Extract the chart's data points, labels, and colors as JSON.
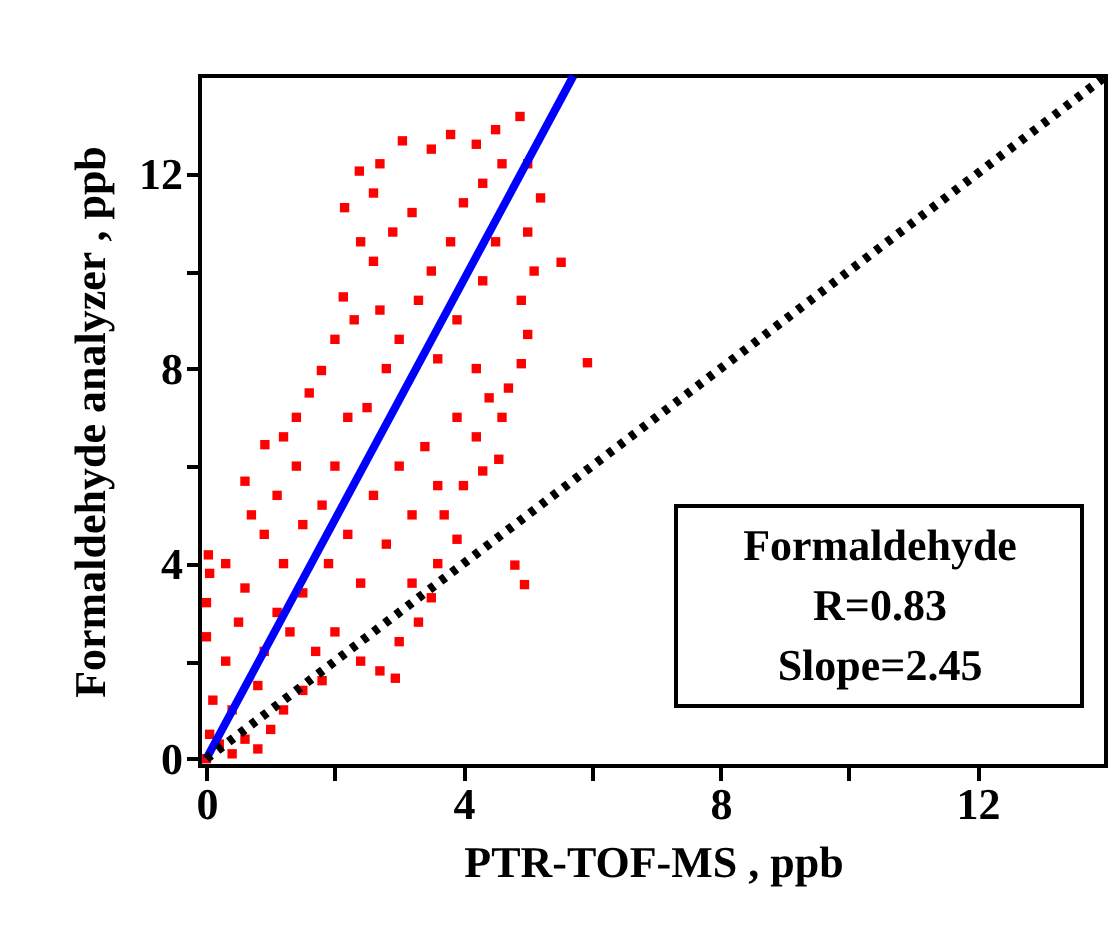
{
  "chart_data": {
    "type": "scatter",
    "xlabel": "PTR-TOF-MS , ppb",
    "ylabel": "Formaldehyde analyzer , ppb",
    "xlim": [
      -0.1,
      14
    ],
    "ylim": [
      -0.15,
      14
    ],
    "xticks": [
      0,
      {
        "value": 2,
        "label": null
      },
      4,
      {
        "value": 6,
        "label": null
      },
      8,
      {
        "value": 10,
        "label": null
      },
      12
    ],
    "yticks": [
      0,
      {
        "value": 2,
        "label": null
      },
      4,
      {
        "value": 6,
        "label": null
      },
      8,
      {
        "value": 10,
        "label": null
      },
      12
    ],
    "grid": false,
    "annotations": [
      "Formaldehyde",
      "R=0.83",
      "Slope=2.45"
    ],
    "series": [
      {
        "color": "#ff0000",
        "marker": "square",
        "x": [
          0,
          0.05,
          0.1,
          0.2,
          0.4,
          0.6,
          0.8,
          1.0,
          1.2,
          1.5,
          1.8,
          0.3,
          0.0,
          0.0,
          0.05,
          0.03,
          0.3,
          0.6,
          0.5,
          0.9,
          1.3,
          1.7,
          2.0,
          2.4,
          2.7,
          2.94,
          3.0,
          3.3,
          3.5,
          3.2,
          3.6,
          4.8,
          4.95,
          3.9,
          3.7,
          4.0,
          4.3,
          4.55,
          4.2,
          4.6,
          4.7,
          5.93,
          4.9,
          5.0,
          4.9,
          5.52,
          5.1,
          5.0,
          5.2,
          5.0,
          4.88,
          4.5,
          4.2,
          3.8,
          3.5,
          3.05,
          2.7,
          2.38,
          2.6,
          2.15,
          2.4,
          2.6,
          2.13,
          2.3,
          2.0,
          1.79,
          1.6,
          1.4,
          1.2,
          0.91,
          0.6,
          0.7,
          0.9,
          1.1,
          1.4,
          1.5,
          1.8,
          2.0,
          2.2,
          2.5,
          2.8,
          3.0,
          3.3,
          3.5,
          3.8,
          4.0,
          4.3,
          4.6,
          3.2,
          2.9,
          2.7,
          3.6,
          3.9,
          4.3,
          4.5,
          4.2,
          4.4,
          3.9,
          3.4,
          3.0,
          2.6,
          2.2,
          1.9,
          1.5,
          1.1,
          0.8,
          2.4,
          2.8,
          3.2,
          3.6,
          1.2,
          0.4
        ],
        "values": [
          0,
          0.5,
          1.2,
          0.3,
          0.1,
          0.4,
          0.2,
          0.6,
          1.0,
          1.4,
          1.6,
          2.0,
          2.5,
          3.2,
          3.8,
          4.18,
          4.0,
          3.5,
          2.8,
          2.2,
          2.6,
          2.2,
          2.6,
          2.0,
          1.8,
          1.65,
          2.4,
          2.8,
          3.3,
          3.6,
          4.0,
          3.97,
          3.57,
          4.5,
          5.0,
          5.6,
          5.9,
          6.14,
          6.6,
          7.0,
          7.6,
          8.12,
          8.1,
          8.7,
          9.4,
          10.18,
          10.0,
          10.8,
          11.5,
          12.2,
          13.17,
          12.9,
          12.6,
          12.8,
          12.5,
          12.67,
          12.2,
          12.05,
          11.6,
          11.3,
          10.6,
          10.2,
          9.47,
          9.0,
          8.6,
          7.96,
          7.5,
          7.0,
          6.6,
          6.44,
          5.69,
          5.0,
          4.6,
          5.4,
          6.0,
          4.8,
          5.2,
          6.0,
          7.0,
          7.2,
          8.0,
          8.6,
          9.4,
          10.0,
          10.6,
          11.4,
          11.8,
          12.2,
          11.2,
          10.8,
          9.2,
          8.2,
          9.0,
          9.8,
          10.6,
          8.0,
          7.4,
          7.0,
          6.4,
          6.0,
          5.4,
          4.6,
          4.0,
          3.4,
          3.0,
          1.5,
          3.6,
          4.4,
          5.0,
          5.6,
          4.0,
          1.0
        ]
      },
      {
        "type": "line",
        "color": "#0000ff",
        "line_style": "solid",
        "x": [
          0,
          5.71
        ],
        "values": [
          0,
          14
        ]
      },
      {
        "type": "line",
        "color": "#000000",
        "line_style": "dotted",
        "x": [
          0,
          14
        ],
        "values": [
          0,
          14
        ]
      }
    ]
  }
}
